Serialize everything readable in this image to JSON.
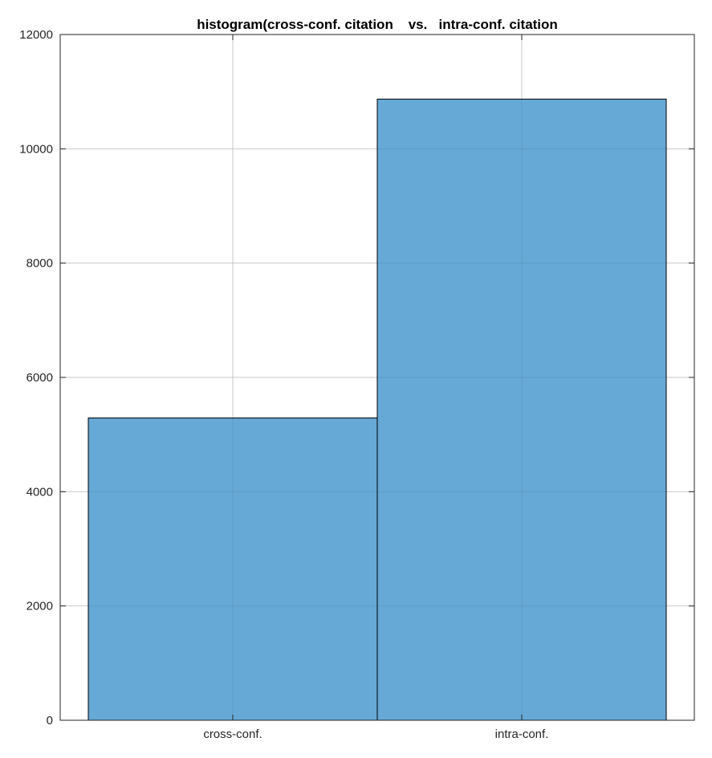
{
  "chart_data": {
    "type": "bar",
    "title": "histogram(cross-conf. citation    vs.   intra-conf. citation",
    "xlabel": "",
    "ylabel": "",
    "categories": [
      "cross-conf.",
      "intra-conf."
    ],
    "values": [
      5290,
      10870
    ],
    "ylim": [
      0,
      12000
    ],
    "yticks": [
      0,
      2000,
      4000,
      6000,
      8000,
      10000,
      12000
    ],
    "ytick_labels": [
      "0",
      "2000",
      "4000",
      "6000",
      "8000",
      "10000",
      "12000"
    ],
    "grid": true,
    "bar_color": "#66a9d6",
    "bar_edge_color": "#000000",
    "grid_color": "#dcdcdc",
    "axis_color": "#262626",
    "legend": "none"
  }
}
